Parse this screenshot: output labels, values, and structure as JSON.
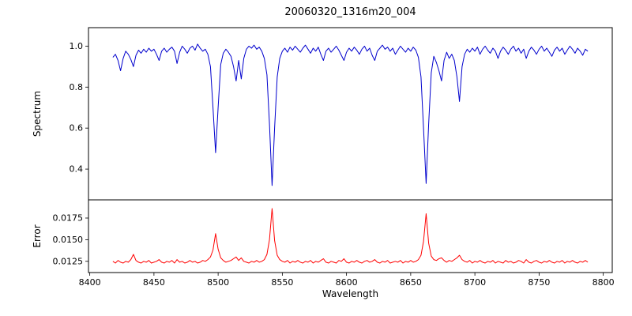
{
  "chart_data": {
    "type": "line",
    "title": "20060320_1316m20_004",
    "xlabel": "Wavelength",
    "xlim": [
      8399,
      8807
    ],
    "xtick_values": [
      8400,
      8450,
      8500,
      8550,
      8600,
      8650,
      8700,
      8750,
      8800
    ],
    "xtick_labels": [
      "8400",
      "8450",
      "8500",
      "8550",
      "8600",
      "8650",
      "8700",
      "8750",
      "8800"
    ],
    "x_start": 8418,
    "x_step": 2,
    "grid": false,
    "legend": "none",
    "panels": [
      {
        "name": "spectrum",
        "ylabel": "Spectrum",
        "color": "#0000cd",
        "ylim": [
          0.25,
          1.09
        ],
        "ytick_values": [
          0.4,
          0.6,
          0.8,
          1.0
        ],
        "ytick_labels": [
          "0.4",
          "0.6",
          "0.8",
          "1.0"
        ],
        "absorption_line_centers": [
          8498,
          8542,
          8662
        ],
        "absorption_line_depths": [
          0.48,
          0.32,
          0.33
        ],
        "values": [
          0.945,
          0.96,
          0.93,
          0.88,
          0.94,
          0.975,
          0.96,
          0.935,
          0.9,
          0.955,
          0.98,
          0.965,
          0.985,
          0.97,
          0.99,
          0.975,
          0.985,
          0.96,
          0.93,
          0.975,
          0.99,
          0.97,
          0.985,
          0.995,
          0.975,
          0.915,
          0.97,
          1.0,
          0.985,
          0.965,
          0.99,
          1.0,
          0.98,
          1.01,
          0.99,
          0.975,
          0.985,
          0.96,
          0.9,
          0.7,
          0.48,
          0.7,
          0.91,
          0.965,
          0.985,
          0.97,
          0.95,
          0.9,
          0.83,
          0.93,
          0.84,
          0.94,
          0.985,
          1.0,
          0.99,
          1.005,
          0.985,
          0.995,
          0.975,
          0.94,
          0.86,
          0.62,
          0.32,
          0.6,
          0.85,
          0.94,
          0.975,
          0.99,
          0.97,
          0.995,
          0.98,
          1.0,
          0.985,
          0.97,
          0.99,
          1.005,
          0.985,
          0.965,
          0.99,
          0.975,
          0.995,
          0.96,
          0.93,
          0.975,
          0.99,
          0.97,
          0.985,
          1.0,
          0.98,
          0.955,
          0.93,
          0.97,
          0.99,
          0.975,
          0.995,
          0.98,
          0.96,
          0.985,
          1.0,
          0.975,
          0.99,
          0.955,
          0.93,
          0.975,
          0.99,
          1.005,
          0.985,
          0.995,
          0.975,
          0.99,
          0.96,
          0.98,
          1.0,
          0.985,
          0.97,
          0.99,
          0.975,
          0.995,
          0.98,
          0.945,
          0.85,
          0.6,
          0.33,
          0.62,
          0.87,
          0.95,
          0.92,
          0.88,
          0.83,
          0.93,
          0.97,
          0.94,
          0.96,
          0.93,
          0.85,
          0.73,
          0.9,
          0.96,
          0.985,
          0.97,
          0.99,
          0.975,
          0.995,
          0.96,
          0.985,
          1.0,
          0.98,
          0.965,
          0.99,
          0.975,
          0.94,
          0.975,
          0.995,
          0.98,
          0.96,
          0.985,
          1.0,
          0.975,
          0.99,
          0.965,
          0.985,
          0.94,
          0.975,
          0.995,
          0.98,
          0.96,
          0.985,
          1.0,
          0.975,
          0.99,
          0.97,
          0.95,
          0.98,
          0.995,
          0.975,
          0.99,
          0.96,
          0.98,
          1.0,
          0.985,
          0.965,
          0.99,
          0.975,
          0.955,
          0.985,
          0.975
        ]
      },
      {
        "name": "error",
        "ylabel": "Error",
        "color": "#ff0000",
        "ylim": [
          0.0112,
          0.0196
        ],
        "ytick_values": [
          0.0125,
          0.015,
          0.0175
        ],
        "ytick_labels": [
          "0.0125",
          "0.0150",
          "0.0175"
        ],
        "peak_centers": [
          8498,
          8542,
          8662
        ],
        "peak_heights": [
          0.0157,
          0.0186,
          0.018
        ],
        "values": [
          0.0125,
          0.0123,
          0.0126,
          0.0124,
          0.0123,
          0.0125,
          0.0124,
          0.0127,
          0.0133,
          0.0126,
          0.0124,
          0.0123,
          0.0125,
          0.0124,
          0.0126,
          0.0123,
          0.0124,
          0.0125,
          0.0127,
          0.0124,
          0.0123,
          0.0125,
          0.0124,
          0.0126,
          0.0123,
          0.0127,
          0.0124,
          0.0125,
          0.0123,
          0.0124,
          0.0126,
          0.0124,
          0.0125,
          0.0123,
          0.0124,
          0.0126,
          0.0125,
          0.0127,
          0.013,
          0.0138,
          0.0157,
          0.0139,
          0.0129,
          0.0126,
          0.0124,
          0.0125,
          0.0126,
          0.0128,
          0.013,
          0.0126,
          0.0129,
          0.0125,
          0.0124,
          0.0123,
          0.0125,
          0.0124,
          0.0126,
          0.0124,
          0.0125,
          0.0127,
          0.0133,
          0.015,
          0.0186,
          0.0149,
          0.0132,
          0.0127,
          0.0125,
          0.0124,
          0.0126,
          0.0123,
          0.0125,
          0.0124,
          0.0126,
          0.0124,
          0.0123,
          0.0125,
          0.0124,
          0.0126,
          0.0123,
          0.0125,
          0.0124,
          0.0126,
          0.0128,
          0.0124,
          0.0123,
          0.0125,
          0.0124,
          0.0123,
          0.0126,
          0.0125,
          0.0128,
          0.0124,
          0.0123,
          0.0125,
          0.0124,
          0.0126,
          0.0124,
          0.0123,
          0.0125,
          0.0126,
          0.0124,
          0.0125,
          0.0127,
          0.0124,
          0.0123,
          0.0125,
          0.0124,
          0.0126,
          0.0123,
          0.0124,
          0.0125,
          0.0124,
          0.0126,
          0.0123,
          0.0125,
          0.0124,
          0.0126,
          0.0124,
          0.0125,
          0.0127,
          0.0132,
          0.0148,
          0.018,
          0.0146,
          0.0131,
          0.0127,
          0.0126,
          0.0128,
          0.0129,
          0.0126,
          0.0124,
          0.0126,
          0.0125,
          0.0127,
          0.0129,
          0.0132,
          0.0127,
          0.0125,
          0.0124,
          0.0126,
          0.0123,
          0.0125,
          0.0124,
          0.0126,
          0.0124,
          0.0123,
          0.0125,
          0.0124,
          0.0126,
          0.0123,
          0.0125,
          0.0124,
          0.0123,
          0.0126,
          0.0124,
          0.0125,
          0.0123,
          0.0124,
          0.0126,
          0.0125,
          0.0123,
          0.0127,
          0.0124,
          0.0123,
          0.0125,
          0.0126,
          0.0124,
          0.0123,
          0.0125,
          0.0124,
          0.0126,
          0.0124,
          0.0123,
          0.0125,
          0.0124,
          0.0126,
          0.0123,
          0.0125,
          0.0124,
          0.0126,
          0.0124,
          0.0123,
          0.0125,
          0.0124,
          0.0126,
          0.0124
        ]
      }
    ]
  }
}
